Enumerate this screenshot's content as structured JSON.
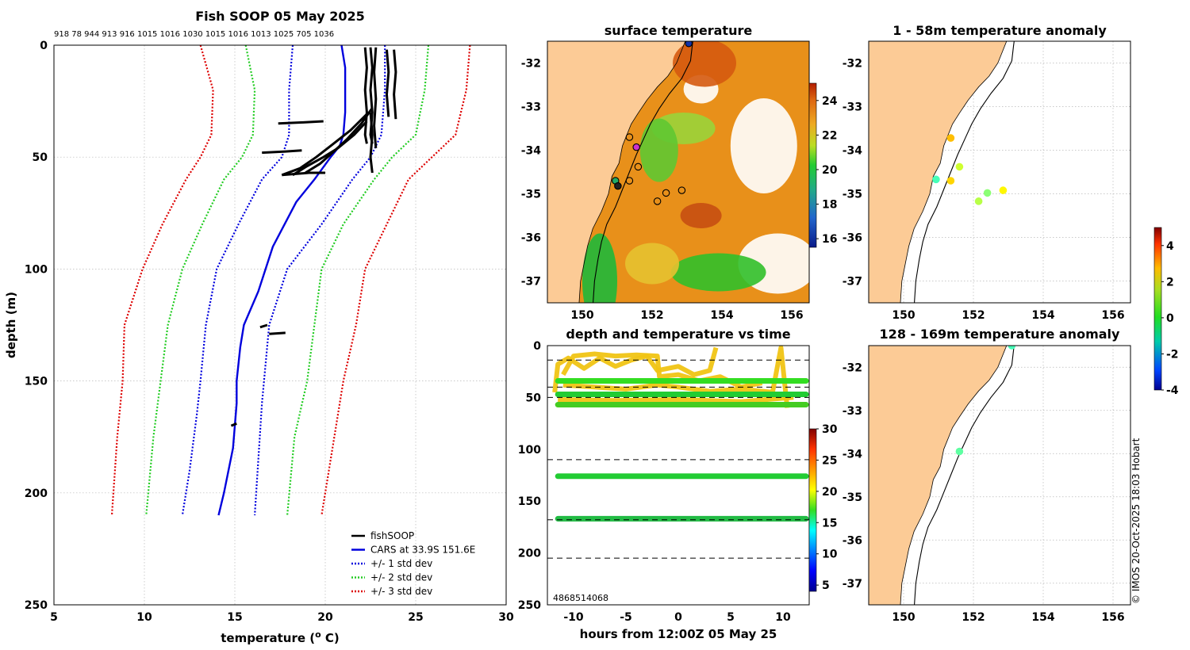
{
  "figure": {
    "copyright": "© IMOS 20-Oct-2025 18:03 Hobart"
  },
  "chart_data": [
    {
      "id": "profile",
      "type": "line",
      "title": "Fish SOOP 05 May 2025",
      "top_labels": "918 78 944 913 916 1015 1016 1030 1015 1016 1013 1025 705 1036",
      "xlabel": "temperature (",
      "xlabel_sup": "o",
      "xlabel_end": " C)",
      "ylabel": "depth (m)",
      "xlim": [
        5,
        30
      ],
      "ylim": [
        0,
        250
      ],
      "xticks": [
        "5",
        "10",
        "15",
        "20",
        "25",
        "30"
      ],
      "yticks": [
        "0",
        "50",
        "100",
        "150",
        "200",
        "250"
      ],
      "legend": [
        {
          "label": "fishSOOP",
          "color": "#000000",
          "style": "solid"
        },
        {
          "label": "CARS at 33.9S 151.6E",
          "color": "#0000dd",
          "style": "solid"
        },
        {
          "label": "+/- 1 std dev",
          "color": "#0000dd",
          "style": "dotted"
        },
        {
          "label": "+/- 2 std dev",
          "color": "#22cc22",
          "style": "dotted"
        },
        {
          "label": "+/- 3 std dev",
          "color": "#dd0000",
          "style": "dotted"
        }
      ],
      "series": [
        {
          "name": "CARS",
          "color": "#0000dd",
          "style": "solid",
          "t": [
            20.9,
            21.1,
            21.1,
            21.0,
            20.8,
            20.3,
            19.4,
            18.4,
            17.1,
            16.3,
            15.5,
            15.3,
            15.1,
            15.1,
            14.9,
            14.4,
            14.1
          ],
          "z": [
            0,
            10,
            30,
            40,
            45,
            50,
            60,
            70,
            90,
            110,
            125,
            135,
            150,
            160,
            180,
            200,
            210
          ]
        },
        {
          "name": "-1 std",
          "color": "#0000dd",
          "style": "dotted",
          "t": [
            18.2,
            18.0,
            18.0,
            17.6,
            16.5,
            15.2,
            14.0,
            13.4,
            13.1,
            12.9,
            12.5,
            12.1
          ],
          "z": [
            0,
            20,
            40,
            50,
            60,
            80,
            100,
            125,
            150,
            165,
            190,
            210
          ]
        },
        {
          "name": "+1 std",
          "color": "#0000dd",
          "style": "dotted",
          "t": [
            23.3,
            23.3,
            23.1,
            22.5,
            21.5,
            19.8,
            17.9,
            16.9,
            16.5,
            16.1
          ],
          "z": [
            0,
            20,
            40,
            50,
            60,
            80,
            100,
            125,
            160,
            210
          ]
        },
        {
          "name": "-2 std",
          "color": "#22cc22",
          "style": "dotted",
          "t": [
            15.6,
            16.1,
            16.0,
            15.4,
            14.4,
            13.2,
            12.1,
            11.3,
            10.9,
            10.5,
            10.1
          ],
          "z": [
            0,
            20,
            40,
            50,
            60,
            80,
            100,
            125,
            150,
            175,
            210
          ]
        },
        {
          "name": "+2 std",
          "color": "#22cc22",
          "style": "dotted",
          "t": [
            25.7,
            25.5,
            25.0,
            23.7,
            22.7,
            21.0,
            19.8,
            19.4,
            19.0,
            18.3,
            17.9
          ],
          "z": [
            0,
            20,
            40,
            50,
            60,
            80,
            100,
            125,
            150,
            175,
            210
          ]
        },
        {
          "name": "-3 std",
          "color": "#dd0000",
          "style": "dotted",
          "t": [
            13.1,
            13.8,
            13.7,
            13.1,
            12.3,
            11.0,
            9.9,
            8.9,
            8.8,
            8.5,
            8.2
          ],
          "z": [
            0,
            20,
            40,
            50,
            60,
            80,
            100,
            125,
            150,
            175,
            210
          ]
        },
        {
          "name": "+3 std",
          "color": "#dd0000",
          "style": "dotted",
          "t": [
            28.0,
            27.8,
            27.2,
            25.9,
            24.6,
            23.4,
            22.2,
            21.7,
            21.0,
            20.5,
            19.8
          ],
          "z": [
            0,
            20,
            40,
            50,
            60,
            80,
            100,
            125,
            150,
            175,
            210
          ]
        }
      ],
      "fishsoop": [
        {
          "t": [
            22.2,
            22.3,
            22.2,
            22.3,
            22.2,
            22.3
          ],
          "z": [
            1,
            10,
            20,
            30,
            40,
            44
          ]
        },
        {
          "t": [
            22.5,
            22.6,
            22.5,
            22.6,
            22.5,
            22.6
          ],
          "z": [
            1,
            10,
            20,
            30,
            40,
            44
          ]
        },
        {
          "t": [
            22.8,
            22.7,
            22.8,
            22.7,
            22.8
          ],
          "z": [
            1,
            12,
            24,
            36,
            46
          ]
        },
        {
          "t": [
            23.4,
            23.5,
            23.4,
            23.5
          ],
          "z": [
            2,
            12,
            22,
            32
          ]
        },
        {
          "t": [
            23.8,
            23.9,
            23.8,
            23.9
          ],
          "z": [
            2,
            12,
            22,
            33
          ]
        },
        {
          "t": [
            22.5,
            22.6,
            22.5,
            22.6
          ],
          "z": [
            30,
            40,
            50,
            57
          ]
        },
        {
          "t": [
            22.3,
            21.6,
            20.7,
            19.9,
            19.0,
            18.2
          ],
          "z": [
            34,
            40,
            46,
            50,
            54,
            58
          ]
        },
        {
          "t": [
            22.4,
            21.4,
            20.3,
            19.5,
            18.6,
            17.6
          ],
          "z": [
            30,
            38,
            45,
            50,
            55,
            58
          ]
        },
        {
          "t": [
            22.6,
            22.0,
            21.2,
            20.4,
            19.7,
            18.9
          ],
          "z": [
            28,
            35,
            42,
            48,
            53,
            57
          ]
        },
        {
          "t": [
            17.6,
            19.1,
            20.0
          ],
          "z": [
            58,
            57,
            57
          ]
        },
        {
          "t": [
            17.4,
            18.8,
            19.9
          ],
          "z": [
            35,
            34.5,
            34
          ]
        },
        {
          "t": [
            16.5,
            17.8,
            18.7
          ],
          "z": [
            48,
            47.5,
            47
          ]
        },
        {
          "t": [
            16.4,
            16.8
          ],
          "z": [
            126,
            125
          ]
        },
        {
          "t": [
            16.9,
            17.8
          ],
          "z": [
            129,
            128.5
          ]
        },
        {
          "t": [
            14.8,
            15.1
          ],
          "z": [
            170,
            169
          ]
        }
      ]
    },
    {
      "id": "surface-map",
      "type": "heatmap",
      "title": "surface temperature",
      "xticks": [
        "150",
        "152",
        "154",
        "156"
      ],
      "yticks": [
        "-32",
        "-33",
        "-34",
        "-35",
        "-36",
        "-37"
      ],
      "xlim": [
        149.0,
        156.5
      ],
      "ylim": [
        -37.5,
        -31.5
      ],
      "colorbar": {
        "ticks": [
          "16",
          "18",
          "20",
          "22",
          "24"
        ],
        "range": [
          15.5,
          25
        ]
      },
      "stations": [
        {
          "lon": 153.05,
          "lat": -31.55,
          "fill": "#1133aa"
        },
        {
          "lon": 151.35,
          "lat": -33.7,
          "fill": "none"
        },
        {
          "lon": 151.55,
          "lat": -33.93,
          "fill": "#cc33cc"
        },
        {
          "lon": 151.6,
          "lat": -34.38,
          "fill": "none"
        },
        {
          "lon": 151.35,
          "lat": -34.7,
          "fill": "none"
        },
        {
          "lon": 150.95,
          "lat": -34.7,
          "fill": "#22aa66"
        },
        {
          "lon": 151.02,
          "lat": -34.82,
          "fill": "#222222"
        },
        {
          "lon": 152.4,
          "lat": -34.98,
          "fill": "none"
        },
        {
          "lon": 152.85,
          "lat": -34.92,
          "fill": "none"
        },
        {
          "lon": 152.15,
          "lat": -35.17,
          "fill": "none"
        }
      ]
    },
    {
      "id": "depth-time",
      "type": "scatter",
      "title": "depth and temperature vs time",
      "xlabel": "hours from 12:00Z 05 May 25",
      "xticks": [
        "-10",
        "-5",
        "0",
        "5",
        "10"
      ],
      "yticks": [
        "0",
        "50",
        "100",
        "150",
        "200",
        "250"
      ],
      "xlim": [
        -12.5,
        12.5
      ],
      "ylim": [
        0,
        250
      ],
      "colorbar": {
        "ticks": [
          "5",
          "10",
          "15",
          "20",
          "25",
          "30"
        ],
        "range": [
          4,
          30
        ]
      },
      "overlap_labels": "4868514068",
      "dashed_depths": [
        14,
        40,
        50,
        110,
        168,
        205
      ],
      "tracks": [
        {
          "depth": 34,
          "t0": -11.5,
          "t1": 12.2,
          "color": "#33dd22"
        },
        {
          "depth": 47,
          "t0": -11.5,
          "t1": 12.2,
          "color": "#22cc33"
        },
        {
          "depth": 57,
          "t0": -11.5,
          "t1": 12.2,
          "color": "#44cc22"
        },
        {
          "depth": 126,
          "t0": -11.5,
          "t1": 12.2,
          "color": "#22cc33"
        },
        {
          "depth": 167,
          "t0": -11.5,
          "t1": 12.2,
          "color": "#22bb44"
        }
      ]
    },
    {
      "id": "anomaly-shallow",
      "type": "scatter",
      "title": "1 - 58m temperature anomaly",
      "xticks": [
        "150",
        "152",
        "154",
        "156"
      ],
      "yticks": [
        "-32",
        "-33",
        "-34",
        "-35",
        "-36",
        "-37"
      ],
      "xlim": [
        149.0,
        156.5
      ],
      "ylim": [
        -37.5,
        -31.5
      ],
      "points": [
        {
          "lon": 151.35,
          "lat": -33.72,
          "anom": 2.2
        },
        {
          "lon": 151.6,
          "lat": -34.38,
          "anom": 1.2
        },
        {
          "lon": 150.93,
          "lat": -34.67,
          "anom": 0.0
        },
        {
          "lon": 151.35,
          "lat": -34.7,
          "anom": 2.0
        },
        {
          "lon": 152.15,
          "lat": -35.17,
          "anom": 1.0
        },
        {
          "lon": 152.4,
          "lat": -34.98,
          "anom": 0.6
        },
        {
          "lon": 152.85,
          "lat": -34.92,
          "anom": 1.7
        }
      ]
    },
    {
      "id": "anomaly-deep",
      "type": "scatter",
      "title": "128 - 169m temperature anomaly",
      "xticks": [
        "150",
        "152",
        "154",
        "156"
      ],
      "yticks": [
        "-32",
        "-33",
        "-34",
        "-35",
        "-36",
        "-37"
      ],
      "xlim": [
        149.0,
        156.5
      ],
      "ylim": [
        -37.5,
        -31.5
      ],
      "points": [
        {
          "lon": 153.1,
          "lat": -31.5,
          "anom": 0.0
        },
        {
          "lon": 151.6,
          "lat": -33.95,
          "anom": 0.2
        }
      ]
    },
    {
      "id": "anomaly-colorbar",
      "type": "heatmap",
      "ticks": [
        "4",
        "2",
        "0",
        "-2",
        "-4"
      ],
      "range": [
        -4,
        5
      ]
    }
  ]
}
